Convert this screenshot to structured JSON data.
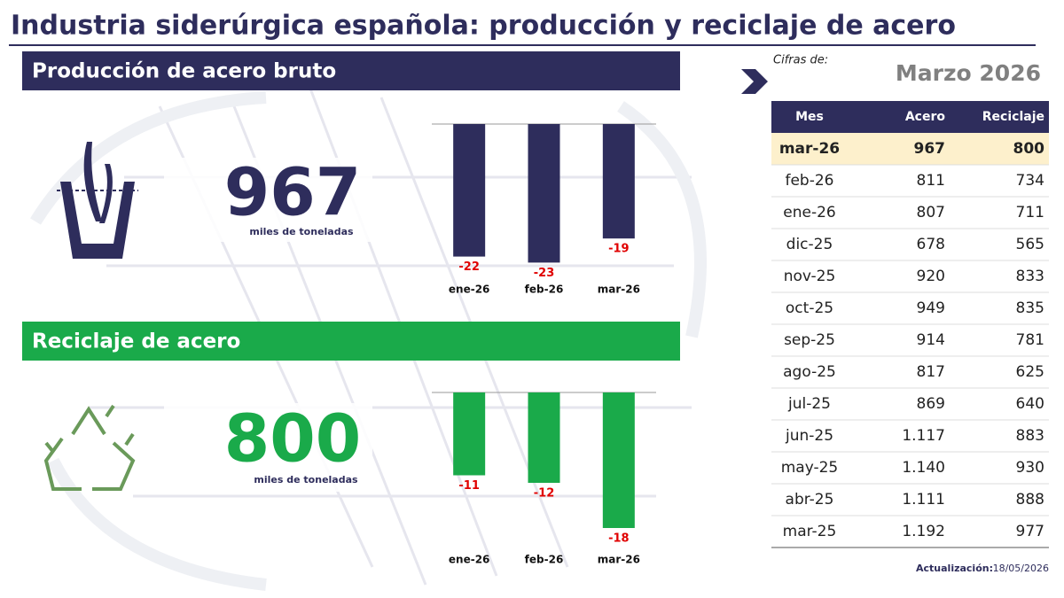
{
  "title": "Industria siderúrgica española: producción y reciclaje de acero",
  "production": {
    "heading": "Producción de acero bruto",
    "value": 967,
    "unit": "miles de toneladas"
  },
  "recycling": {
    "heading": "Reciclaje de acero",
    "value": 800,
    "unit": "miles de toneladas"
  },
  "chart_data": [
    {
      "type": "bar",
      "categories": [
        "ene-26",
        "feb-26",
        "mar-26"
      ],
      "values": [
        -22,
        -23,
        -19
      ],
      "color": "#2e2d5c",
      "label_color": "#e00000",
      "ylim": [
        -25,
        0
      ]
    },
    {
      "type": "bar",
      "categories": [
        "ene-26",
        "feb-26",
        "mar-26"
      ],
      "values": [
        -11,
        -12,
        -18
      ],
      "color": "#1aaa4a",
      "label_color": "#e00000",
      "ylim": [
        -20,
        0
      ]
    }
  ],
  "period": {
    "label": "Cifras de:",
    "value": "Marzo 2026"
  },
  "table": {
    "columns": [
      "Mes",
      "Acero",
      "Reciclaje"
    ],
    "rows": [
      [
        "mar-26",
        "967",
        "800"
      ],
      [
        "feb-26",
        "811",
        "734"
      ],
      [
        "ene-26",
        "807",
        "711"
      ],
      [
        "dic-25",
        "678",
        "565"
      ],
      [
        "nov-25",
        "920",
        "833"
      ],
      [
        "oct-25",
        "949",
        "835"
      ],
      [
        "sep-25",
        "914",
        "781"
      ],
      [
        "ago-25",
        "817",
        "625"
      ],
      [
        "jul-25",
        "869",
        "640"
      ],
      [
        "jun-25",
        "1.117",
        "883"
      ],
      [
        "may-25",
        "1.140",
        "930"
      ],
      [
        "abr-25",
        "1.111",
        "888"
      ],
      [
        "mar-25",
        "1.192",
        "977"
      ]
    ]
  },
  "update": {
    "label": "Actualización:",
    "date": "18/05/2026"
  }
}
